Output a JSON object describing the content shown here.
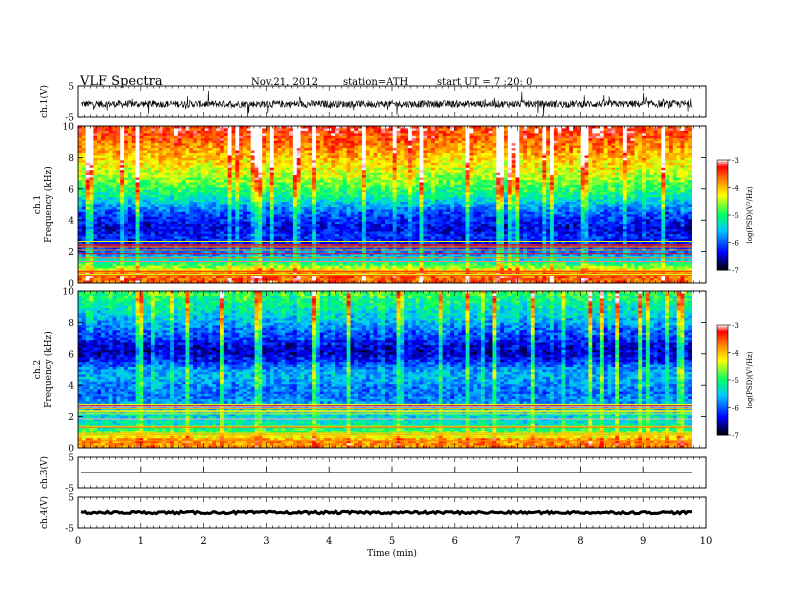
{
  "header": {
    "title": "VLF  Spectra",
    "date": "Nov.21, 2012",
    "station": "station=ATH",
    "start": "start  UT  =   7  :20: 0"
  },
  "colors": {
    "background": "#ffffff",
    "axis": "#000000",
    "colormap": [
      "#000000",
      "#0000ff",
      "#00c8ff",
      "#00ff64",
      "#ffff00",
      "#ff8000",
      "#ff0000",
      "#ffffff"
    ]
  },
  "chart_data": [
    {
      "type": "line",
      "ylabel": "ch.1(V)",
      "ylim": [
        -5,
        5
      ],
      "yticks": [
        "5",
        "-5"
      ],
      "xlim": [
        0,
        10
      ],
      "description_values": {
        "baseline_v": -0.8,
        "noise_amplitude_v": 1.2,
        "spike_max_v": 3.5
      }
    },
    {
      "type": "heatmap",
      "ylabel": "ch.1\nFrequency  (kHz)",
      "ylim": [
        0,
        10
      ],
      "yticks": [
        "0",
        "2",
        "4",
        "6",
        "8",
        "10"
      ],
      "xlim": [
        0,
        9.8
      ],
      "colorbar": {
        "label": "log(PSD)(V²/Hz)",
        "range": [
          -7,
          -3
        ],
        "ticks": [
          "-3",
          "-4",
          "-5",
          "-6",
          "-7"
        ]
      },
      "rows_logpsd": [
        {
          "f_khz": 0.5,
          "v": -3.6
        },
        {
          "f_khz": 1.0,
          "v": -4.6
        },
        {
          "f_khz": 1.5,
          "v": -5.4
        },
        {
          "f_khz": 2.0,
          "v": -5.9
        },
        {
          "f_khz": 2.5,
          "v": -6.3
        },
        {
          "f_khz": 3.0,
          "v": -6.2
        },
        {
          "f_khz": 3.5,
          "v": -6.4
        },
        {
          "f_khz": 4.0,
          "v": -6.2
        },
        {
          "f_khz": 4.5,
          "v": -6.0
        },
        {
          "f_khz": 5.0,
          "v": -5.6
        },
        {
          "f_khz": 5.5,
          "v": -5.2
        },
        {
          "f_khz": 6.0,
          "v": -4.9
        },
        {
          "f_khz": 6.5,
          "v": -4.6
        },
        {
          "f_khz": 7.0,
          "v": -4.4
        },
        {
          "f_khz": 7.5,
          "v": -4.2
        },
        {
          "f_khz": 8.0,
          "v": -4.0
        },
        {
          "f_khz": 8.5,
          "v": -3.8
        },
        {
          "f_khz": 9.0,
          "v": -3.6
        },
        {
          "f_khz": 9.5,
          "v": -3.4
        },
        {
          "f_khz": 10.0,
          "v": -3.3
        }
      ]
    },
    {
      "type": "heatmap",
      "ylabel": "ch.2\nFrequency  (kHz)",
      "ylim": [
        0,
        10
      ],
      "yticks": [
        "0",
        "2",
        "4",
        "6",
        "8",
        "10"
      ],
      "xlim": [
        0,
        9.8
      ],
      "colorbar": {
        "label": "log(PSD)(V²/Hz)",
        "range": [
          -7,
          -3
        ],
        "ticks": [
          "-3",
          "-4",
          "-5",
          "-6",
          "-7"
        ]
      },
      "rows_logpsd": [
        {
          "f_khz": 0.5,
          "v": -3.8
        },
        {
          "f_khz": 1.0,
          "v": -4.8
        },
        {
          "f_khz": 1.5,
          "v": -5.3
        },
        {
          "f_khz": 2.0,
          "v": -5.4
        },
        {
          "f_khz": 2.5,
          "v": -5.6
        },
        {
          "f_khz": 3.0,
          "v": -5.8
        },
        {
          "f_khz": 3.5,
          "v": -5.9
        },
        {
          "f_khz": 4.0,
          "v": -5.8
        },
        {
          "f_khz": 4.5,
          "v": -5.6
        },
        {
          "f_khz": 5.0,
          "v": -5.7
        },
        {
          "f_khz": 5.5,
          "v": -6.2
        },
        {
          "f_khz": 6.0,
          "v": -6.5
        },
        {
          "f_khz": 6.5,
          "v": -6.4
        },
        {
          "f_khz": 7.0,
          "v": -6.1
        },
        {
          "f_khz": 7.5,
          "v": -5.9
        },
        {
          "f_khz": 8.0,
          "v": -5.6
        },
        {
          "f_khz": 8.5,
          "v": -5.4
        },
        {
          "f_khz": 9.0,
          "v": -5.2
        },
        {
          "f_khz": 9.5,
          "v": -5.0
        },
        {
          "f_khz": 10.0,
          "v": -4.8
        }
      ]
    },
    {
      "type": "line",
      "ylabel": "ch.3(V)",
      "ylim": [
        -5,
        5
      ],
      "yticks": [
        "5",
        "-5"
      ],
      "xlim": [
        0,
        9.8
      ],
      "description_values": {
        "baseline_v": 0.0,
        "noise_amplitude_v": 0.0
      }
    },
    {
      "type": "line",
      "ylabel": "ch.4(V)",
      "ylim": [
        -5,
        5
      ],
      "yticks": [
        "5",
        "-5"
      ],
      "xlim": [
        0,
        9.8
      ],
      "xlabel": "Time  (min)",
      "xticks": [
        "0",
        "1",
        "2",
        "3",
        "4",
        "5",
        "6",
        "7",
        "8",
        "9",
        "10"
      ],
      "description_values": {
        "baseline_v": 0.0,
        "noise_amplitude_v": 0.4
      }
    }
  ]
}
